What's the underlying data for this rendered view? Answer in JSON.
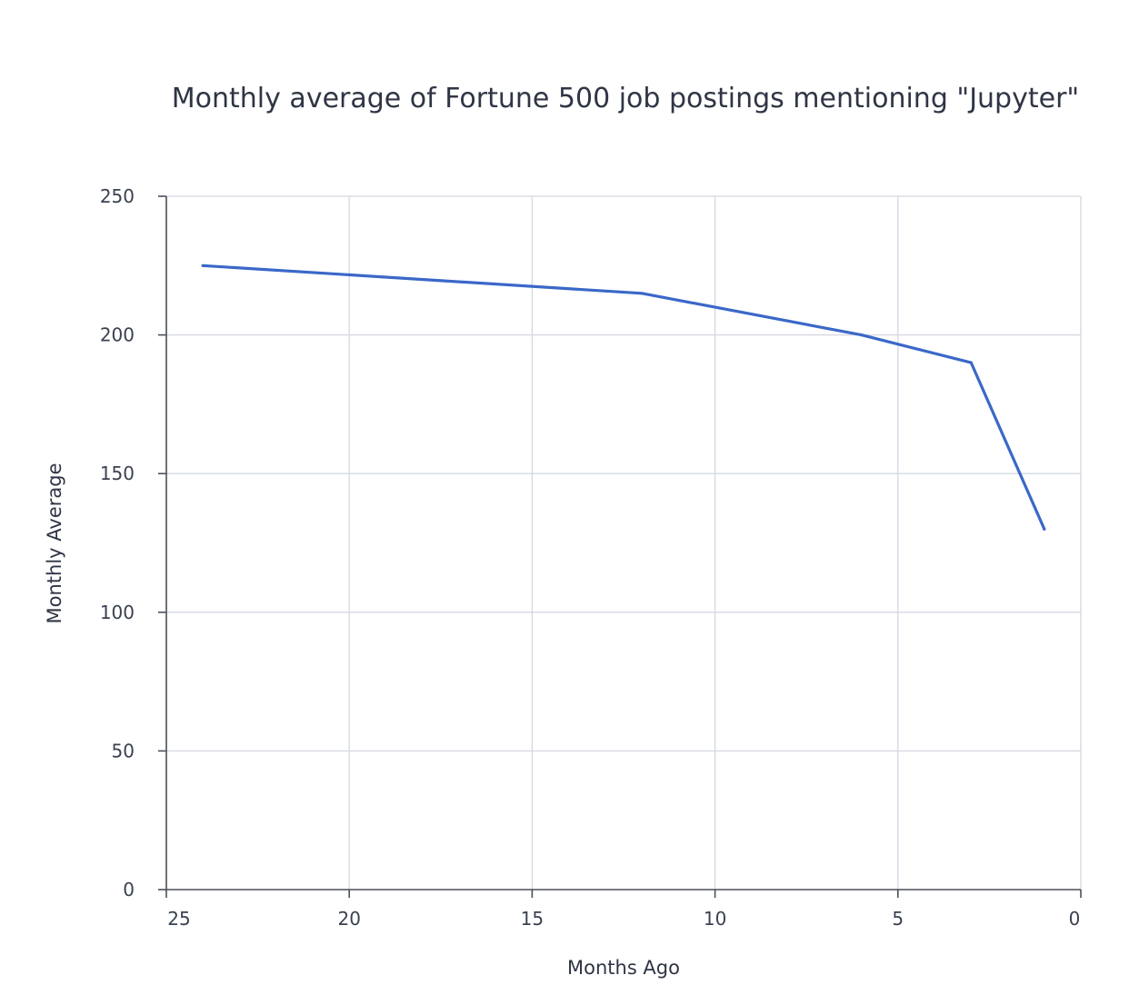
{
  "chart_data": {
    "type": "line",
    "title": "Monthly average of Fortune 500 job postings mentioning \"Jupyter\"",
    "xlabel": "Months Ago",
    "ylabel": "Monthly Average",
    "xlim": [
      25,
      0
    ],
    "ylim": [
      0,
      250
    ],
    "x_reversed": true,
    "xticks": [
      25,
      20,
      15,
      10,
      5,
      0
    ],
    "yticks": [
      0,
      50,
      100,
      150,
      200,
      250
    ],
    "grid": true,
    "series": [
      {
        "name": "Monthly Average",
        "color": "#3a68c8",
        "x": [
          24,
          12,
          6,
          3,
          1
        ],
        "y": [
          225,
          215,
          200,
          190,
          130
        ]
      }
    ]
  }
}
